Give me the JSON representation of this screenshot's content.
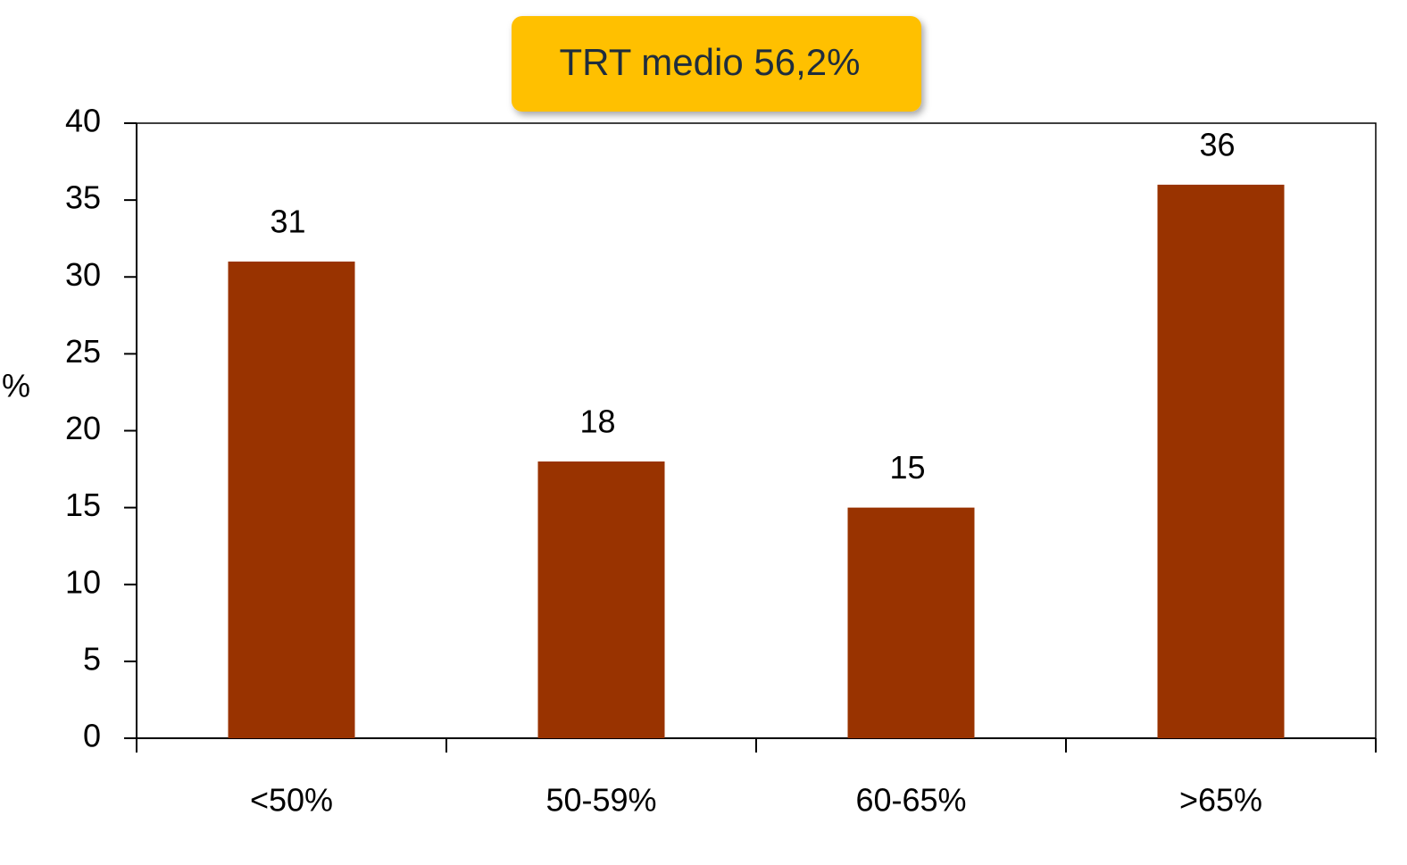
{
  "chart_data": {
    "type": "bar",
    "annotation": "TRT medio 56,2%",
    "y_label": "%",
    "categories": [
      "<50%",
      "50-59%",
      "60-65%",
      ">65%"
    ],
    "values": [
      31,
      18,
      15,
      36
    ],
    "color": "#993300",
    "ylim": [
      0,
      40
    ],
    "yticks": [
      0,
      5,
      10,
      15,
      20,
      25,
      30,
      35,
      40
    ],
    "annotation_color": "#FFC000"
  }
}
